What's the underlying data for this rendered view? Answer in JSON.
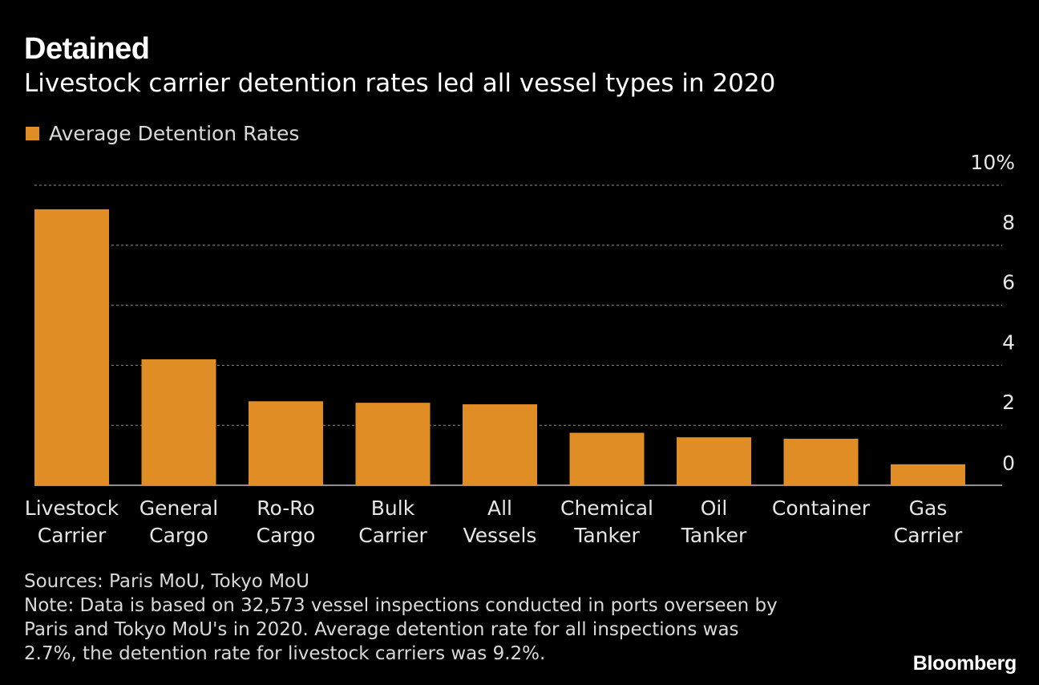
{
  "header": {
    "title": "Detained",
    "subtitle": "Livestock carrier detention rates led all vessel types in 2020"
  },
  "legend": {
    "label": "Average Detention Rates",
    "color": "#e08d25"
  },
  "chart_data": {
    "type": "bar",
    "categories": [
      [
        "Livestock",
        "Carrier"
      ],
      [
        "General",
        "Cargo"
      ],
      [
        "Ro-Ro",
        "Cargo"
      ],
      [
        "Bulk",
        "Carrier"
      ],
      [
        "All",
        "Vessels"
      ],
      [
        "Chemical",
        "Tanker"
      ],
      [
        "Oil",
        "Tanker"
      ],
      [
        "Container"
      ],
      [
        "Gas",
        "Carrier"
      ]
    ],
    "series": [
      {
        "name": "Average Detention Rates",
        "values": [
          9.2,
          4.2,
          2.8,
          2.75,
          2.7,
          1.75,
          1.6,
          1.55,
          0.7
        ],
        "color": "#e08d25"
      }
    ],
    "ylim": [
      0,
      10
    ],
    "yticks": [
      {
        "value": 0,
        "label": "0"
      },
      {
        "value": 2,
        "label": "2"
      },
      {
        "value": 4,
        "label": "4"
      },
      {
        "value": 6,
        "label": "6"
      },
      {
        "value": 8,
        "label": "8"
      },
      {
        "value": 10,
        "label": "10%"
      }
    ],
    "grid": true,
    "legend_position": "top-left"
  },
  "footer": {
    "sources": "Sources: Paris MoU, Tokyo MoU",
    "note_lines": [
      "Note: Data is based on 32,573 vessel inspections conducted in ports overseen by",
      "Paris and Tokyo MoU's in 2020. Average detention rate for all inspections was",
      "2.7%, the detention rate for livestock carriers was 9.2%."
    ],
    "brand": "Bloomberg"
  }
}
